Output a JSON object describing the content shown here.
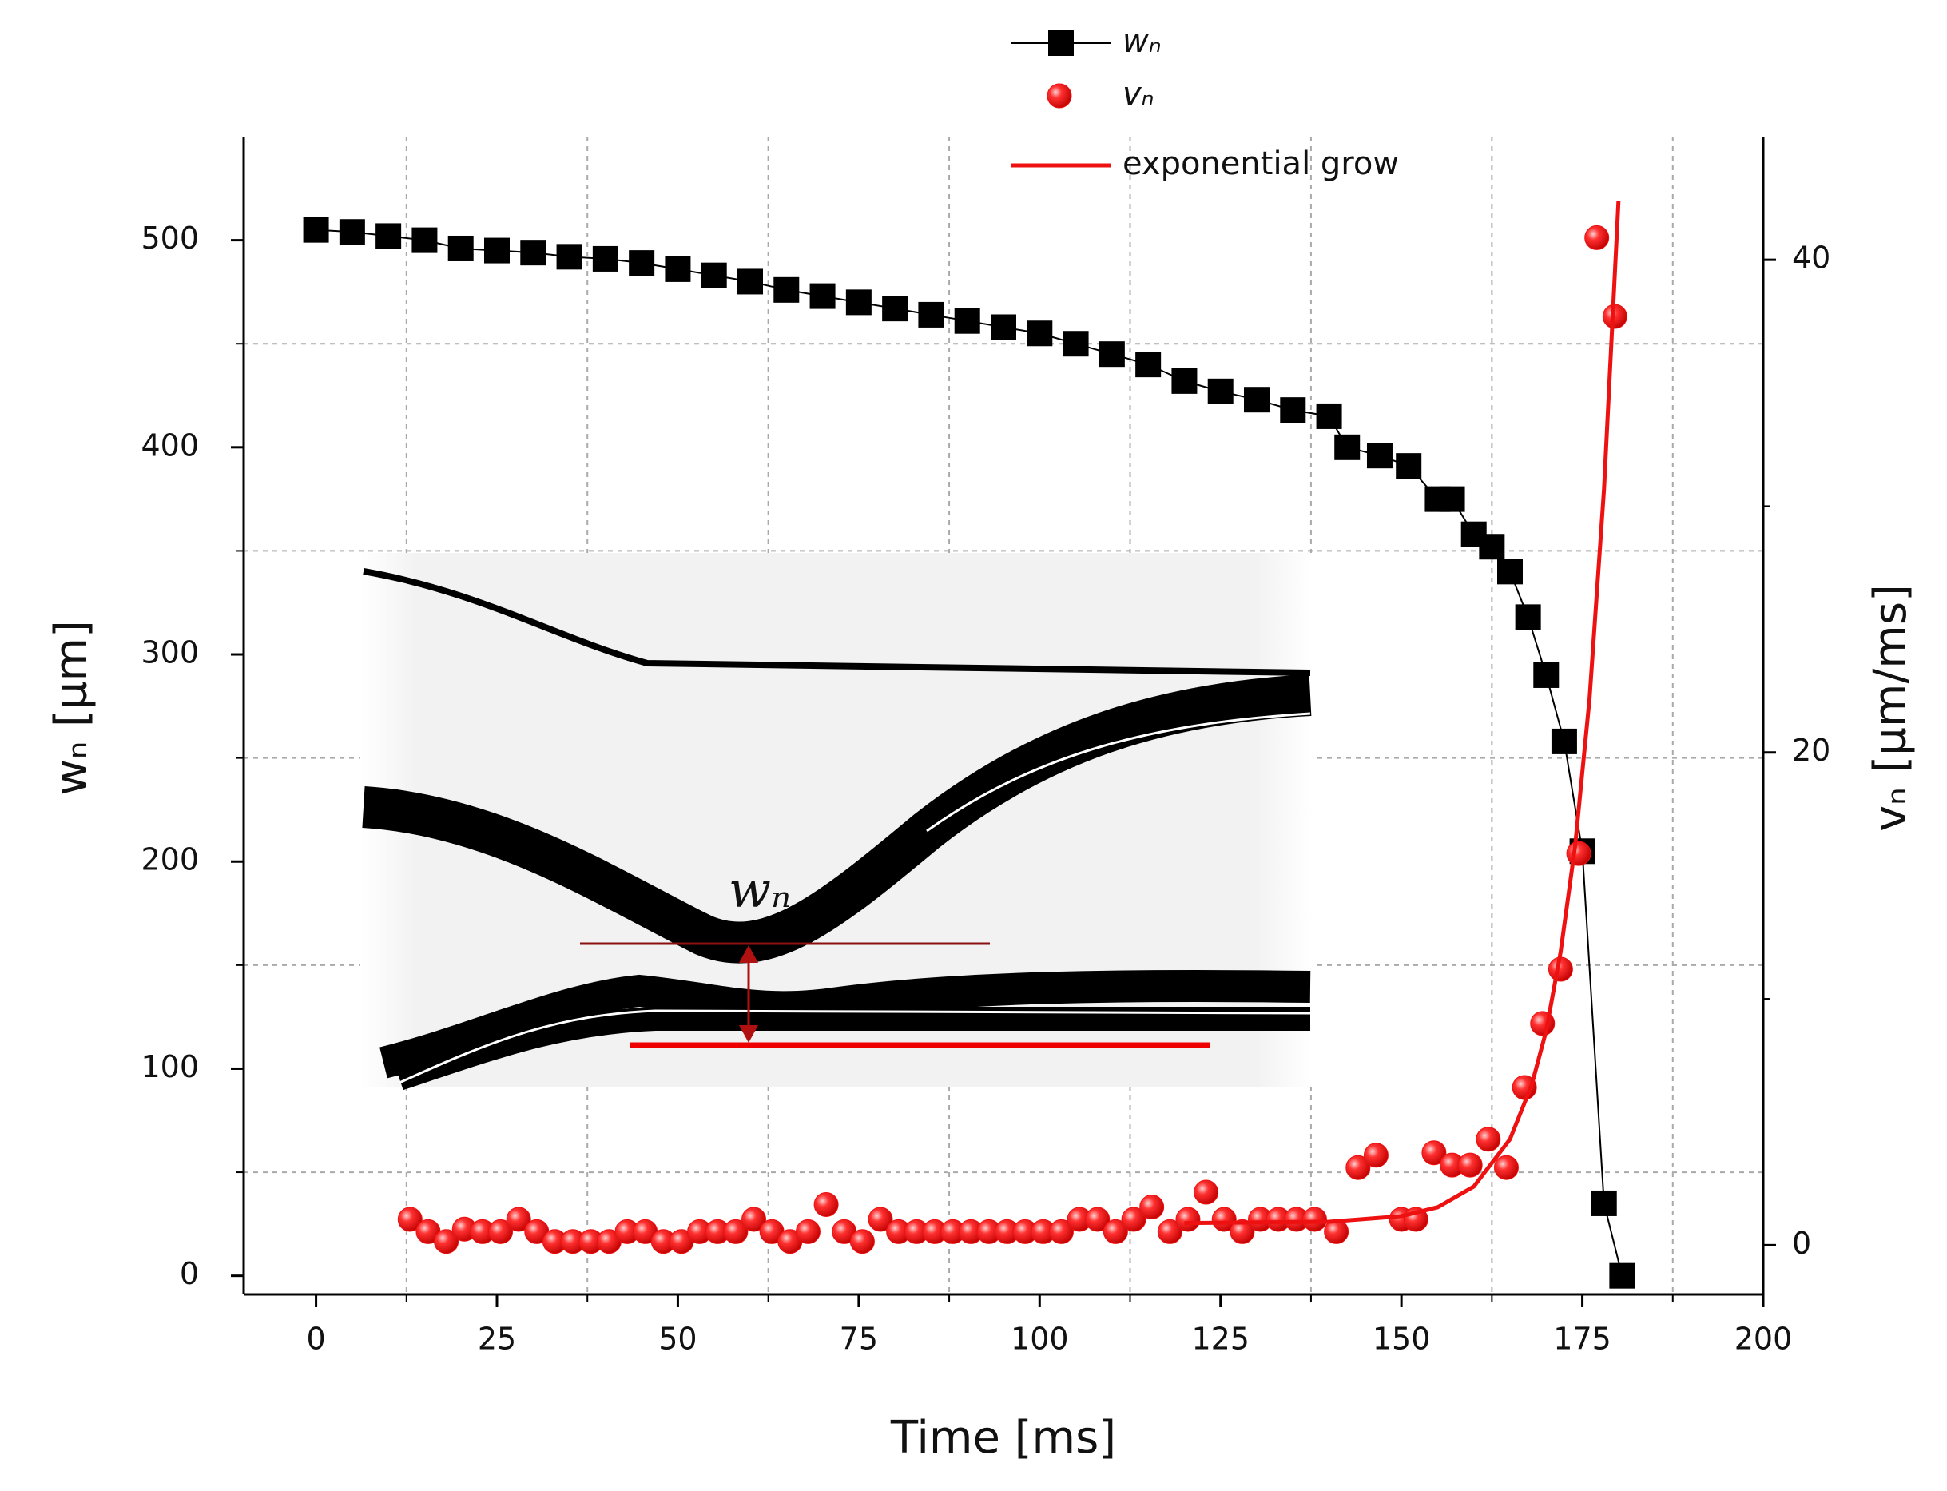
{
  "chart_data": {
    "type": "line",
    "xlabel": "Time [ms]",
    "ylabel": "wₙ [µm]",
    "y2label": "vₙ [µm/ms]",
    "inset_label": "wₙ",
    "xlim": [
      -10,
      200
    ],
    "xticks": [
      0,
      25,
      50,
      75,
      100,
      125,
      150,
      175,
      200
    ],
    "ylim": [
      -9,
      550
    ],
    "yticks": [
      0,
      100,
      200,
      300,
      400,
      500
    ],
    "y2lim": [
      -2,
      45
    ],
    "y2ticks": [
      0,
      20,
      40
    ],
    "grid": true,
    "series": [
      {
        "name": "wₙ",
        "color": "#000000",
        "marker": "square",
        "line": true,
        "axis": "y",
        "x": [
          0,
          5,
          10,
          15,
          20,
          25,
          30,
          35,
          40,
          45,
          50,
          55,
          60,
          65,
          70,
          75,
          80,
          85,
          90,
          95,
          100,
          105,
          110,
          115,
          120,
          125,
          130,
          135,
          140,
          142.5,
          147,
          151,
          155,
          157,
          160,
          162.5,
          165,
          167.5,
          170,
          172.5,
          175,
          178,
          180.5
        ],
        "values": [
          505,
          504,
          502,
          500,
          496,
          495,
          494,
          492,
          491,
          489,
          486,
          483,
          480,
          476,
          473,
          470,
          467,
          464,
          461,
          458,
          455,
          450,
          445,
          440,
          432,
          427,
          423,
          418,
          415,
          400,
          396,
          391,
          375,
          375,
          358,
          352,
          340,
          318,
          290,
          258,
          205,
          35,
          0
        ]
      },
      {
        "name": "vₙ",
        "color": "#ee1111",
        "marker": "circle",
        "line": false,
        "axis": "y2",
        "x": [
          13,
          15.5,
          18,
          20.5,
          23,
          25.5,
          28,
          30.5,
          33,
          35.5,
          38,
          40.5,
          43,
          45.5,
          48,
          50.5,
          53,
          55.5,
          58,
          60.5,
          63,
          65.5,
          68,
          70.5,
          73,
          75.5,
          78,
          80.5,
          83,
          85.5,
          88,
          90.5,
          93,
          95.5,
          98,
          100.5,
          103,
          105.5,
          108,
          110.5,
          113,
          115.5,
          118,
          120.5,
          123,
          125.5,
          128,
          130.5,
          133,
          135.5,
          138,
          141,
          144,
          146.5,
          150,
          152,
          154.5,
          157,
          159.5,
          162,
          164.5,
          167,
          169.5,
          172,
          174.5,
          177,
          179.5
        ],
        "values": [
          1.05,
          0.55,
          0.15,
          0.65,
          0.55,
          0.55,
          1.05,
          0.55,
          0.15,
          0.15,
          0.15,
          0.15,
          0.55,
          0.55,
          0.15,
          0.15,
          0.55,
          0.55,
          0.55,
          1.05,
          0.55,
          0.15,
          0.55,
          1.65,
          0.55,
          0.15,
          1.05,
          0.55,
          0.55,
          0.55,
          0.55,
          0.55,
          0.55,
          0.55,
          0.55,
          0.55,
          0.55,
          1.05,
          1.05,
          0.55,
          1.05,
          1.55,
          0.55,
          1.05,
          2.15,
          1.05,
          0.55,
          1.05,
          1.05,
          1.05,
          1.05,
          0.55,
          3.15,
          3.65,
          1.05,
          1.05,
          3.75,
          3.25,
          3.25,
          4.3,
          3.15,
          6.4,
          9.0,
          11.2,
          15.9,
          40.9,
          37.7
        ]
      },
      {
        "name": "exponential grow",
        "color": "#ee1111",
        "marker": "none",
        "line": true,
        "axis": "y2",
        "x": [
          120,
          140,
          150,
          155,
          160,
          165,
          168,
          170,
          172,
          174,
          176,
          178,
          180
        ],
        "values": [
          0.9,
          0.95,
          1.18,
          1.54,
          2.38,
          4.3,
          6.5,
          8.7,
          11.9,
          16.2,
          22.2,
          30.7,
          42.4
        ]
      }
    ]
  }
}
